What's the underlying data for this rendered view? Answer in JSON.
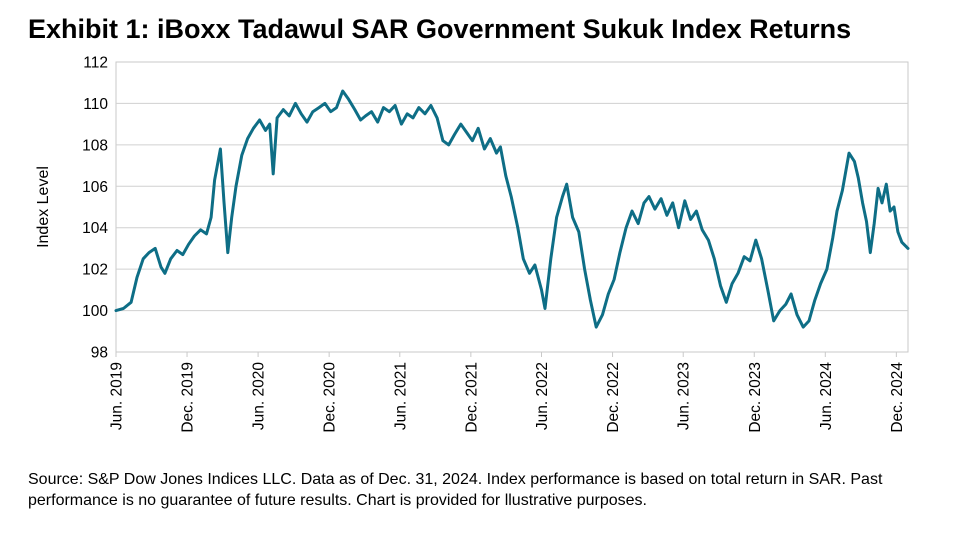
{
  "chart_data": {
    "type": "line",
    "title": "Exhibit 1: iBoxx Tadawul SAR Government Sukuk Index Returns",
    "ylabel": "Index Level",
    "xlabel": "",
    "ylim": [
      98,
      112
    ],
    "yticks": [
      98,
      100,
      102,
      104,
      106,
      108,
      110,
      112
    ],
    "xlim": [
      "2019-06-01",
      "2024-12-31"
    ],
    "xticks": [
      {
        "label": "Jun. 2019",
        "date": "2019-06-01"
      },
      {
        "label": "Dec. 2019",
        "date": "2019-12-01"
      },
      {
        "label": "Jun. 2020",
        "date": "2020-06-01"
      },
      {
        "label": "Dec. 2020",
        "date": "2020-12-01"
      },
      {
        "label": "Jun. 2021",
        "date": "2021-06-01"
      },
      {
        "label": "Dec. 2021",
        "date": "2021-12-01"
      },
      {
        "label": "Jun. 2022",
        "date": "2022-06-01"
      },
      {
        "label": "Dec. 2022",
        "date": "2022-12-01"
      },
      {
        "label": "Jun. 2023",
        "date": "2023-06-01"
      },
      {
        "label": "Dec. 2023",
        "date": "2023-12-01"
      },
      {
        "label": "Jun. 2024",
        "date": "2024-06-01"
      },
      {
        "label": "Dec. 2024",
        "date": "2024-12-01"
      }
    ],
    "grid": "horizontal",
    "line_color": "#0e6e86",
    "series": [
      {
        "points": [
          [
            "2019-06-01",
            100.0
          ],
          [
            "2019-06-20",
            100.1
          ],
          [
            "2019-07-10",
            100.4
          ],
          [
            "2019-07-25",
            101.6
          ],
          [
            "2019-08-10",
            102.5
          ],
          [
            "2019-08-25",
            102.8
          ],
          [
            "2019-09-10",
            103.0
          ],
          [
            "2019-09-25",
            102.1
          ],
          [
            "2019-10-05",
            101.8
          ],
          [
            "2019-10-20",
            102.5
          ],
          [
            "2019-11-05",
            102.9
          ],
          [
            "2019-11-20",
            102.7
          ],
          [
            "2019-12-05",
            103.2
          ],
          [
            "2019-12-20",
            103.6
          ],
          [
            "2020-01-05",
            103.9
          ],
          [
            "2020-01-20",
            103.7
          ],
          [
            "2020-02-01",
            104.5
          ],
          [
            "2020-02-10",
            106.3
          ],
          [
            "2020-02-25",
            107.8
          ],
          [
            "2020-03-05",
            105.3
          ],
          [
            "2020-03-15",
            102.8
          ],
          [
            "2020-03-25",
            104.5
          ],
          [
            "2020-04-05",
            106.0
          ],
          [
            "2020-04-20",
            107.5
          ],
          [
            "2020-05-05",
            108.3
          ],
          [
            "2020-05-20",
            108.8
          ],
          [
            "2020-06-05",
            109.2
          ],
          [
            "2020-06-20",
            108.7
          ],
          [
            "2020-07-01",
            109.0
          ],
          [
            "2020-07-10",
            106.6
          ],
          [
            "2020-07-20",
            109.3
          ],
          [
            "2020-08-05",
            109.7
          ],
          [
            "2020-08-20",
            109.4
          ],
          [
            "2020-09-05",
            110.0
          ],
          [
            "2020-09-20",
            109.5
          ],
          [
            "2020-10-05",
            109.1
          ],
          [
            "2020-10-20",
            109.6
          ],
          [
            "2020-11-05",
            109.8
          ],
          [
            "2020-11-20",
            110.0
          ],
          [
            "2020-12-05",
            109.6
          ],
          [
            "2020-12-20",
            109.8
          ],
          [
            "2021-01-05",
            110.6
          ],
          [
            "2021-01-20",
            110.2
          ],
          [
            "2021-02-05",
            109.7
          ],
          [
            "2021-02-20",
            109.2
          ],
          [
            "2021-03-05",
            109.4
          ],
          [
            "2021-03-20",
            109.6
          ],
          [
            "2021-04-05",
            109.1
          ],
          [
            "2021-04-20",
            109.8
          ],
          [
            "2021-05-05",
            109.6
          ],
          [
            "2021-05-20",
            109.9
          ],
          [
            "2021-06-05",
            109.0
          ],
          [
            "2021-06-20",
            109.5
          ],
          [
            "2021-07-05",
            109.3
          ],
          [
            "2021-07-20",
            109.8
          ],
          [
            "2021-08-05",
            109.5
          ],
          [
            "2021-08-20",
            109.9
          ],
          [
            "2021-09-05",
            109.3
          ],
          [
            "2021-09-20",
            108.2
          ],
          [
            "2021-10-05",
            108.0
          ],
          [
            "2021-10-20",
            108.5
          ],
          [
            "2021-11-05",
            109.0
          ],
          [
            "2021-11-20",
            108.6
          ],
          [
            "2021-12-05",
            108.2
          ],
          [
            "2021-12-20",
            108.8
          ],
          [
            "2022-01-05",
            107.8
          ],
          [
            "2022-01-20",
            108.3
          ],
          [
            "2022-02-05",
            107.6
          ],
          [
            "2022-02-15",
            107.9
          ],
          [
            "2022-03-01",
            106.5
          ],
          [
            "2022-03-15",
            105.5
          ],
          [
            "2022-04-01",
            104.0
          ],
          [
            "2022-04-15",
            102.5
          ],
          [
            "2022-05-01",
            101.8
          ],
          [
            "2022-05-15",
            102.2
          ],
          [
            "2022-06-01",
            101.0
          ],
          [
            "2022-06-10",
            100.1
          ],
          [
            "2022-06-25",
            102.5
          ],
          [
            "2022-07-10",
            104.5
          ],
          [
            "2022-07-25",
            105.5
          ],
          [
            "2022-08-05",
            106.1
          ],
          [
            "2022-08-20",
            104.5
          ],
          [
            "2022-09-05",
            103.8
          ],
          [
            "2022-09-20",
            102.0
          ],
          [
            "2022-10-05",
            100.5
          ],
          [
            "2022-10-20",
            99.2
          ],
          [
            "2022-11-05",
            99.8
          ],
          [
            "2022-11-20",
            100.8
          ],
          [
            "2022-12-05",
            101.5
          ],
          [
            "2022-12-20",
            102.8
          ],
          [
            "2023-01-05",
            104.0
          ],
          [
            "2023-01-20",
            104.8
          ],
          [
            "2023-02-05",
            104.2
          ],
          [
            "2023-02-20",
            105.2
          ],
          [
            "2023-03-05",
            105.5
          ],
          [
            "2023-03-20",
            104.9
          ],
          [
            "2023-04-05",
            105.4
          ],
          [
            "2023-04-20",
            104.6
          ],
          [
            "2023-05-05",
            105.2
          ],
          [
            "2023-05-20",
            104.0
          ],
          [
            "2023-06-05",
            105.3
          ],
          [
            "2023-06-20",
            104.4
          ],
          [
            "2023-07-05",
            104.8
          ],
          [
            "2023-07-20",
            103.9
          ],
          [
            "2023-08-05",
            103.4
          ],
          [
            "2023-08-20",
            102.5
          ],
          [
            "2023-09-05",
            101.2
          ],
          [
            "2023-09-20",
            100.4
          ],
          [
            "2023-10-05",
            101.3
          ],
          [
            "2023-10-20",
            101.8
          ],
          [
            "2023-11-05",
            102.6
          ],
          [
            "2023-11-20",
            102.4
          ],
          [
            "2023-12-05",
            103.4
          ],
          [
            "2023-12-20",
            102.5
          ],
          [
            "2024-01-05",
            101.0
          ],
          [
            "2024-01-20",
            99.5
          ],
          [
            "2024-02-05",
            100.0
          ],
          [
            "2024-02-20",
            100.3
          ],
          [
            "2024-03-05",
            100.8
          ],
          [
            "2024-03-20",
            99.8
          ],
          [
            "2024-04-05",
            99.2
          ],
          [
            "2024-04-20",
            99.5
          ],
          [
            "2024-05-05",
            100.5
          ],
          [
            "2024-05-20",
            101.3
          ],
          [
            "2024-06-05",
            102.0
          ],
          [
            "2024-06-20",
            103.5
          ],
          [
            "2024-07-01",
            104.8
          ],
          [
            "2024-07-15",
            105.8
          ],
          [
            "2024-08-01",
            107.6
          ],
          [
            "2024-08-15",
            107.2
          ],
          [
            "2024-08-25",
            106.4
          ],
          [
            "2024-09-05",
            105.2
          ],
          [
            "2024-09-15",
            104.3
          ],
          [
            "2024-09-25",
            102.8
          ],
          [
            "2024-10-05",
            104.2
          ],
          [
            "2024-10-15",
            105.9
          ],
          [
            "2024-10-25",
            105.2
          ],
          [
            "2024-11-05",
            106.1
          ],
          [
            "2024-11-15",
            104.8
          ],
          [
            "2024-11-25",
            105.0
          ],
          [
            "2024-12-05",
            103.8
          ],
          [
            "2024-12-15",
            103.3
          ],
          [
            "2024-12-31",
            103.0
          ]
        ]
      }
    ]
  },
  "footer": {
    "source": "Source: S&P Dow Jones Indices LLC.  Data as of Dec. 31, 2024.  Index performance is based on total return in SAR.  Past performance is no guarantee of future results.  Chart is provided for llustrative purposes."
  }
}
